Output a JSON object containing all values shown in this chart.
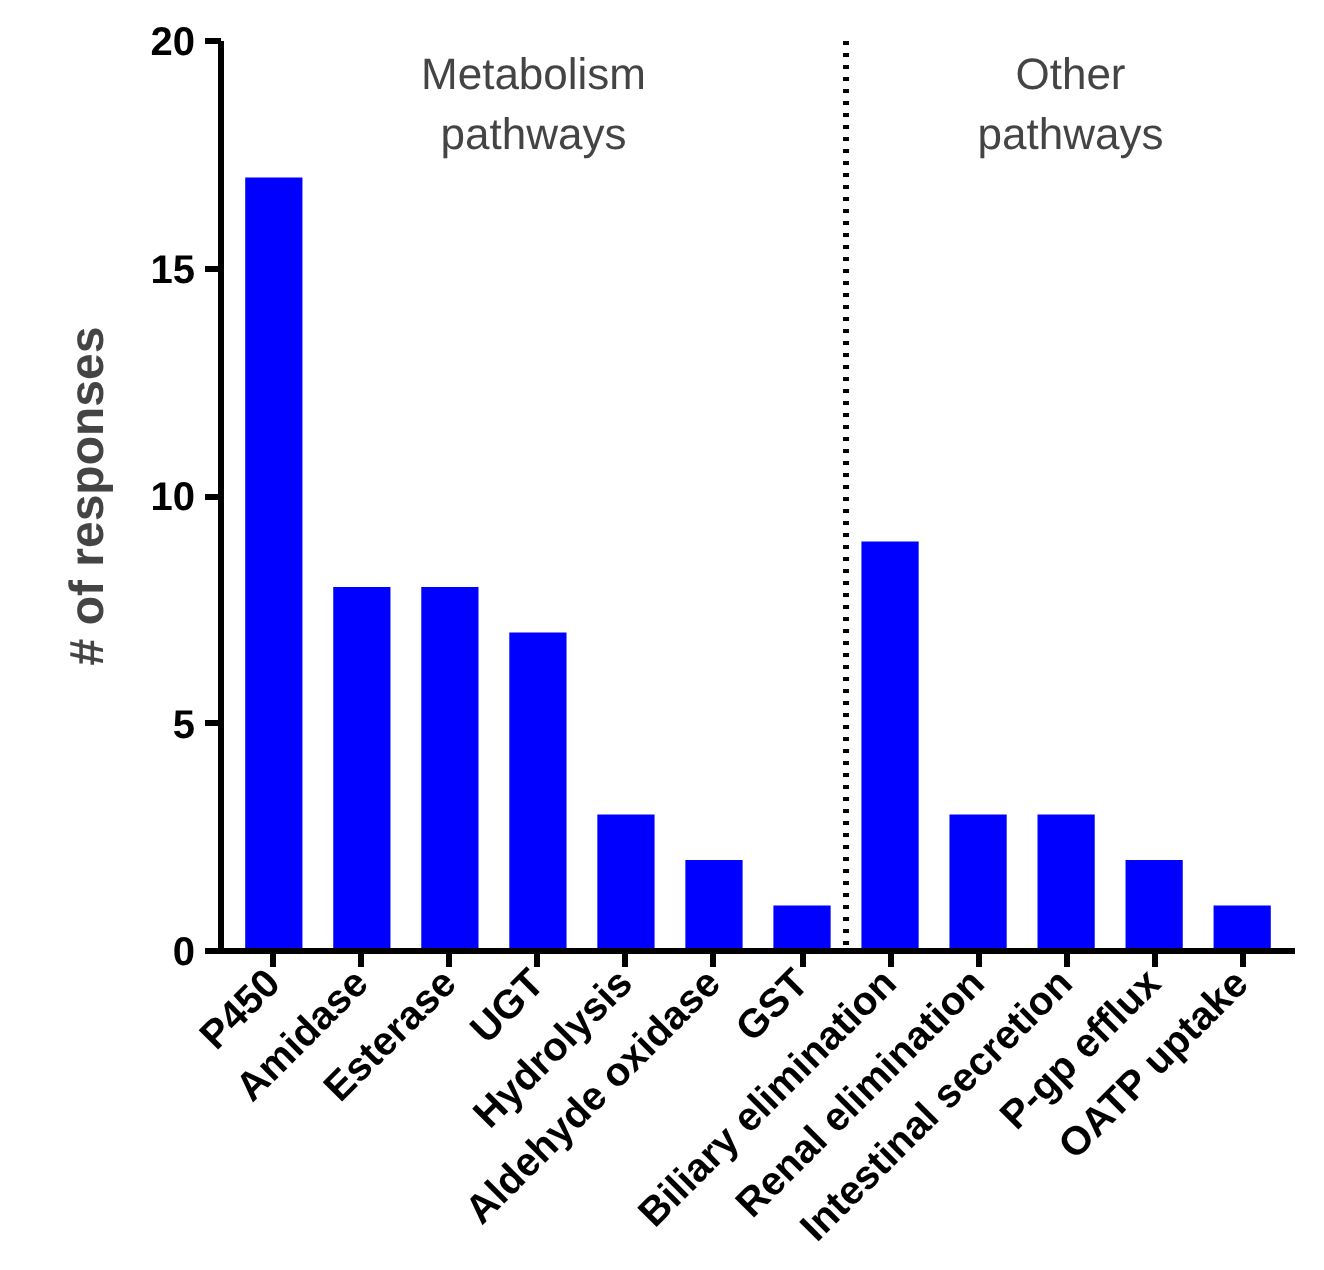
{
  "chart_data": {
    "type": "bar",
    "ylabel": "# of responses",
    "categories": [
      "P450",
      "Amidase",
      "Esterase",
      "UGT",
      "Hydrolysis",
      "Aldehyde oxidase",
      "GST",
      "Biliary elimination",
      "Renal elimination",
      "Intestinal secretion",
      "P-gp efflux",
      "OATP uptake"
    ],
    "values": [
      17,
      8,
      8,
      7,
      3,
      2,
      1,
      9,
      3,
      3,
      2,
      1
    ],
    "color": "#0000ff",
    "ylim": [
      0,
      20
    ],
    "yticks": [
      0,
      5,
      10,
      15,
      20
    ],
    "grid": false,
    "annotations": [
      "Metabolism\npathways",
      "Other\npathways"
    ]
  }
}
